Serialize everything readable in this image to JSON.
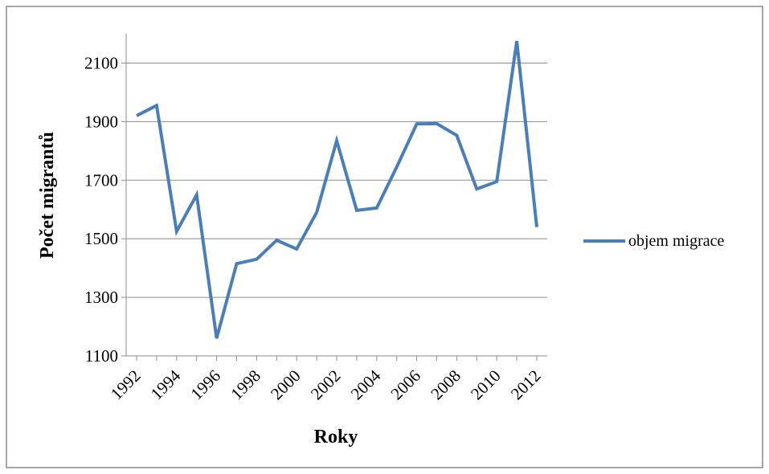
{
  "chart_data": {
    "type": "line",
    "title": "",
    "xlabel": "Roky",
    "ylabel": "Počet migrantů",
    "ylim": [
      1100,
      2200
    ],
    "yticks": [
      1100,
      1300,
      1500,
      1700,
      1900,
      2100
    ],
    "x_tick_labels": [
      "1992",
      "1994",
      "1996",
      "1998",
      "2000",
      "2002",
      "2004",
      "2006",
      "2008",
      "2010",
      "2012"
    ],
    "grid": "horizontal",
    "legend_position": "right",
    "x": [
      1992,
      1993,
      1994,
      1995,
      1996,
      1997,
      1998,
      1999,
      2000,
      2001,
      2002,
      2003,
      2004,
      2005,
      2006,
      2007,
      2008,
      2009,
      2010,
      2011,
      2012
    ],
    "series": [
      {
        "name": "objem migrace",
        "color": "#4a7ebb",
        "values": [
          1920,
          1955,
          1525,
          1650,
          1160,
          1415,
          1430,
          1495,
          1465,
          1590,
          1835,
          1597,
          1605,
          1745,
          1892,
          1893,
          1853,
          1670,
          1695,
          2175,
          1540
        ]
      }
    ]
  }
}
